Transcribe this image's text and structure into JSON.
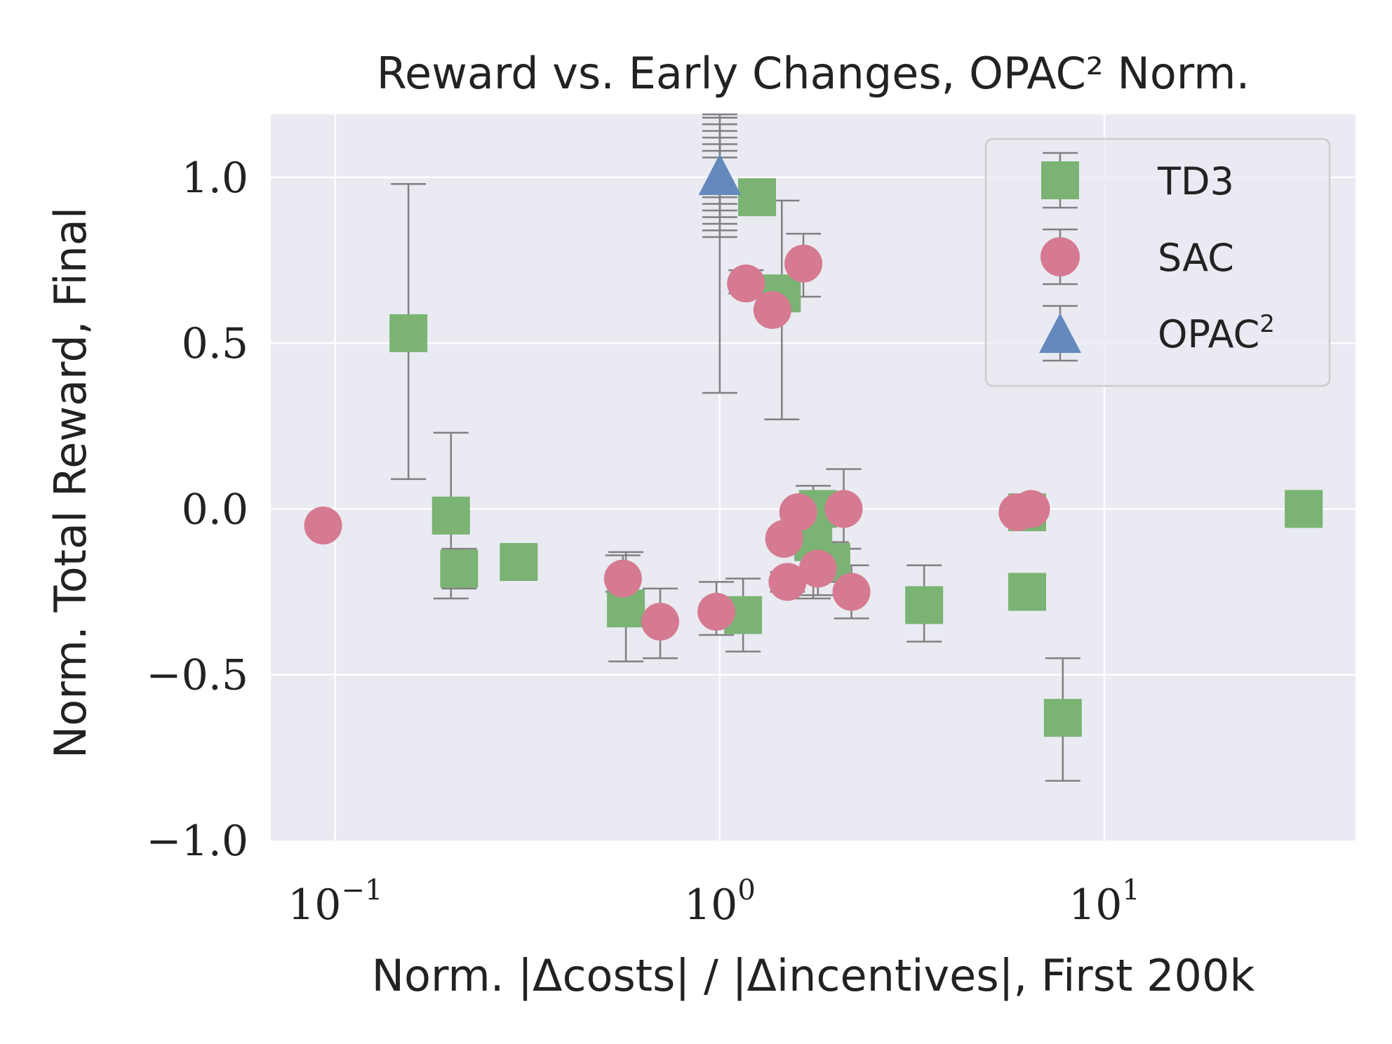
{
  "chart_data": {
    "type": "scatter",
    "title": "Reward vs. Early Changes, OPAC² Norm.",
    "xlabel": "Norm. |Δcosts| / |Δincentives|, First 200k",
    "ylabel": "Norm. Total Reward, Final",
    "xscale": "log",
    "xlim": [
      0.068,
      45
    ],
    "ylim": [
      -1.0,
      1.19
    ],
    "grid": true,
    "legend_position": "top-right",
    "yticks": [
      {
        "value": -1.0,
        "label": "−1.0"
      },
      {
        "value": -0.5,
        "label": "−0.5"
      },
      {
        "value": 0.0,
        "label": "0.0"
      },
      {
        "value": 0.5,
        "label": "0.5"
      },
      {
        "value": 1.0,
        "label": "1.0"
      }
    ],
    "xticks": [
      {
        "value": 0.1,
        "base": "10",
        "exp": "−1"
      },
      {
        "value": 1,
        "base": "10",
        "exp": "0"
      },
      {
        "value": 10,
        "base": "10",
        "exp": "1"
      }
    ],
    "series": [
      {
        "name": "TD3",
        "marker": "square",
        "color": "#7ab373",
        "points": [
          {
            "x": 0.155,
            "y": 0.53,
            "lo": 0.09,
            "hi": 0.98
          },
          {
            "x": 0.2,
            "y": -0.02,
            "lo": -0.27,
            "hi": 0.23
          },
          {
            "x": 0.21,
            "y": -0.18,
            "lo": -0.24,
            "hi": -0.12
          },
          {
            "x": 0.3,
            "y": -0.16,
            "lo": -0.2,
            "hi": -0.11
          },
          {
            "x": 0.57,
            "y": -0.3,
            "lo": -0.46,
            "hi": -0.13
          },
          {
            "x": 1.15,
            "y": -0.32,
            "lo": -0.43,
            "hi": -0.21
          },
          {
            "x": 1.25,
            "y": 0.94,
            "lo": 0.92,
            "hi": 0.96
          },
          {
            "x": 1.45,
            "y": 0.65,
            "lo": 0.27,
            "hi": 0.93
          },
          {
            "x": 1.8,
            "y": 0.0,
            "lo": -0.02,
            "hi": 0.02
          },
          {
            "x": 1.75,
            "y": -0.1,
            "lo": -0.27,
            "hi": 0.07
          },
          {
            "x": 1.95,
            "y": -0.16,
            "lo": -0.22,
            "hi": -0.1
          },
          {
            "x": 3.4,
            "y": -0.29,
            "lo": -0.4,
            "hi": -0.17
          },
          {
            "x": 6.3,
            "y": -0.01,
            "lo": -0.02,
            "hi": 0.0
          },
          {
            "x": 6.3,
            "y": -0.25,
            "lo": -0.29,
            "hi": -0.2
          },
          {
            "x": 7.8,
            "y": -0.63,
            "lo": -0.82,
            "hi": -0.45
          },
          {
            "x": 33.0,
            "y": 0.0,
            "lo": -0.01,
            "hi": 0.01
          }
        ]
      },
      {
        "name": "SAC",
        "marker": "circle",
        "color": "#d57a90",
        "points": [
          {
            "x": 0.093,
            "y": -0.05,
            "lo": -0.055,
            "hi": -0.045
          },
          {
            "x": 0.56,
            "y": -0.21,
            "lo": -0.25,
            "hi": -0.14
          },
          {
            "x": 0.7,
            "y": -0.34,
            "lo": -0.45,
            "hi": -0.24
          },
          {
            "x": 0.98,
            "y": -0.31,
            "lo": -0.38,
            "hi": -0.22
          },
          {
            "x": 1.17,
            "y": 0.68,
            "lo": 0.65,
            "hi": 0.72
          },
          {
            "x": 1.37,
            "y": 0.6,
            "lo": 0.58,
            "hi": 0.62
          },
          {
            "x": 1.65,
            "y": 0.74,
            "lo": 0.64,
            "hi": 0.83
          },
          {
            "x": 1.47,
            "y": -0.09,
            "lo": -0.11,
            "hi": -0.07
          },
          {
            "x": 1.6,
            "y": -0.01,
            "lo": -0.03,
            "hi": 0.01
          },
          {
            "x": 1.5,
            "y": -0.22,
            "lo": -0.25,
            "hi": -0.19
          },
          {
            "x": 1.8,
            "y": -0.18,
            "lo": -0.26,
            "hi": -0.1
          },
          {
            "x": 2.1,
            "y": 0.0,
            "lo": -0.12,
            "hi": 0.12
          },
          {
            "x": 2.2,
            "y": -0.25,
            "lo": -0.33,
            "hi": -0.17
          },
          {
            "x": 5.95,
            "y": -0.01,
            "lo": -0.015,
            "hi": -0.005
          },
          {
            "x": 6.45,
            "y": 0.0,
            "lo": -0.01,
            "hi": 0.01
          }
        ]
      },
      {
        "name": "OPAC²",
        "marker": "triangle",
        "color": "#6389bd",
        "points": [
          {
            "x": 1.0,
            "y": 1.0,
            "lo": 0.35,
            "hi": 1.19
          },
          {
            "x": 1.0,
            "y": 1.0,
            "lo": 0.82,
            "hi": 1.18
          },
          {
            "x": 1.0,
            "y": 1.0,
            "lo": 0.84,
            "hi": 1.16
          },
          {
            "x": 1.0,
            "y": 1.0,
            "lo": 0.86,
            "hi": 1.14
          },
          {
            "x": 1.0,
            "y": 1.0,
            "lo": 0.88,
            "hi": 1.12
          },
          {
            "x": 1.0,
            "y": 1.0,
            "lo": 0.9,
            "hi": 1.1
          },
          {
            "x": 1.0,
            "y": 1.0,
            "lo": 0.92,
            "hi": 1.08
          },
          {
            "x": 1.0,
            "y": 1.0,
            "lo": 0.94,
            "hi": 1.06
          }
        ]
      }
    ]
  },
  "legend": {
    "items": [
      {
        "label": "TD3"
      },
      {
        "label": "SAC"
      },
      {
        "label": "OPAC",
        "sup": "2"
      }
    ]
  },
  "colors": {
    "plot_background": "#eaeaf2",
    "grid": "#ffffff",
    "errorbar": "#808080",
    "text": "#222222"
  }
}
